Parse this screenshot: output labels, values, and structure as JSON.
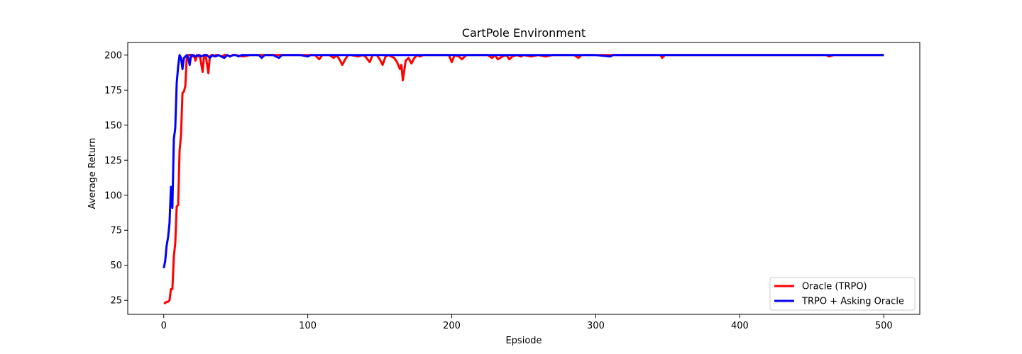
{
  "chart_data": {
    "type": "line",
    "title": "CartPole Environment",
    "xlabel": "Epsiode",
    "ylabel": "Average Return",
    "xlim": [
      -25,
      525
    ],
    "ylim": [
      15,
      209
    ],
    "xticks": [
      0,
      100,
      200,
      300,
      400,
      500
    ],
    "yticks": [
      25,
      50,
      75,
      100,
      125,
      150,
      175,
      200
    ],
    "grid": false,
    "legend": "lower right",
    "series": [
      {
        "name": "Oracle (TRPO)",
        "color": "#ff0000",
        "points": [
          [
            0,
            23
          ],
          [
            1,
            23
          ],
          [
            2,
            24
          ],
          [
            3,
            24
          ],
          [
            4,
            25
          ],
          [
            5,
            33
          ],
          [
            6,
            33
          ],
          [
            7,
            56
          ],
          [
            8,
            66
          ],
          [
            9,
            92
          ],
          [
            10,
            93
          ],
          [
            11,
            132
          ],
          [
            12,
            143
          ],
          [
            13,
            173
          ],
          [
            14,
            174
          ],
          [
            15,
            178
          ],
          [
            16,
            199
          ],
          [
            17,
            200
          ],
          [
            18,
            200
          ],
          [
            19,
            200
          ],
          [
            20,
            199
          ],
          [
            21,
            200
          ],
          [
            22,
            196
          ],
          [
            23,
            200
          ],
          [
            24,
            199
          ],
          [
            25,
            200
          ],
          [
            26,
            194
          ],
          [
            27,
            188
          ],
          [
            28,
            200
          ],
          [
            29,
            200
          ],
          [
            30,
            194
          ],
          [
            31,
            187
          ],
          [
            32,
            199
          ],
          [
            33,
            200
          ],
          [
            34,
            200
          ],
          [
            35,
            199
          ],
          [
            36,
            200
          ],
          [
            38,
            200
          ],
          [
            40,
            199
          ],
          [
            42,
            200
          ],
          [
            44,
            200
          ],
          [
            46,
            199
          ],
          [
            48,
            200
          ],
          [
            50,
            200
          ],
          [
            55,
            199
          ],
          [
            60,
            200
          ],
          [
            70,
            200
          ],
          [
            80,
            200
          ],
          [
            90,
            200
          ],
          [
            100,
            200
          ],
          [
            105,
            200
          ],
          [
            108,
            197
          ],
          [
            110,
            200
          ],
          [
            115,
            200
          ],
          [
            118,
            198
          ],
          [
            120,
            200
          ],
          [
            122,
            197
          ],
          [
            124,
            193
          ],
          [
            126,
            197
          ],
          [
            128,
            200
          ],
          [
            130,
            200
          ],
          [
            135,
            199
          ],
          [
            138,
            200
          ],
          [
            140,
            199
          ],
          [
            143,
            195
          ],
          [
            145,
            200
          ],
          [
            148,
            200
          ],
          [
            150,
            197
          ],
          [
            152,
            193
          ],
          [
            154,
            199
          ],
          [
            156,
            200
          ],
          [
            158,
            199
          ],
          [
            160,
            198
          ],
          [
            162,
            195
          ],
          [
            164,
            190
          ],
          [
            165,
            193
          ],
          [
            166,
            182
          ],
          [
            168,
            196
          ],
          [
            170,
            198
          ],
          [
            172,
            194
          ],
          [
            174,
            198
          ],
          [
            176,
            200
          ],
          [
            178,
            199
          ],
          [
            180,
            200
          ],
          [
            185,
            200
          ],
          [
            190,
            200
          ],
          [
            195,
            200
          ],
          [
            198,
            200
          ],
          [
            200,
            195
          ],
          [
            202,
            200
          ],
          [
            205,
            199
          ],
          [
            207,
            197
          ],
          [
            210,
            200
          ],
          [
            215,
            200
          ],
          [
            220,
            200
          ],
          [
            225,
            200
          ],
          [
            228,
            198
          ],
          [
            230,
            200
          ],
          [
            232,
            197
          ],
          [
            235,
            199
          ],
          [
            238,
            200
          ],
          [
            240,
            197
          ],
          [
            242,
            199
          ],
          [
            245,
            200
          ],
          [
            248,
            199
          ],
          [
            250,
            200
          ],
          [
            255,
            199
          ],
          [
            260,
            200
          ],
          [
            265,
            199
          ],
          [
            270,
            200
          ],
          [
            280,
            200
          ],
          [
            285,
            200
          ],
          [
            288,
            198
          ],
          [
            290,
            200
          ],
          [
            300,
            200
          ],
          [
            310,
            200
          ],
          [
            320,
            200
          ],
          [
            330,
            200
          ],
          [
            340,
            200
          ],
          [
            345,
            200
          ],
          [
            346,
            198
          ],
          [
            348,
            200
          ],
          [
            360,
            200
          ],
          [
            380,
            200
          ],
          [
            400,
            200
          ],
          [
            420,
            200
          ],
          [
            440,
            200
          ],
          [
            460,
            200
          ],
          [
            462,
            199
          ],
          [
            465,
            200
          ],
          [
            480,
            200
          ],
          [
            500,
            200
          ]
        ]
      },
      {
        "name": "TRPO + Asking Oracle",
        "color": "#0000ff",
        "points": [
          [
            0,
            48
          ],
          [
            1,
            53
          ],
          [
            2,
            64
          ],
          [
            3,
            70
          ],
          [
            4,
            80
          ],
          [
            5,
            106
          ],
          [
            6,
            91
          ],
          [
            7,
            140
          ],
          [
            8,
            148
          ],
          [
            9,
            180
          ],
          [
            10,
            192
          ],
          [
            11,
            200
          ],
          [
            12,
            198
          ],
          [
            13,
            190
          ],
          [
            14,
            198
          ],
          [
            15,
            199
          ],
          [
            16,
            200
          ],
          [
            17,
            198
          ],
          [
            18,
            193
          ],
          [
            19,
            200
          ],
          [
            20,
            200
          ],
          [
            22,
            199
          ],
          [
            24,
            200
          ],
          [
            26,
            199
          ],
          [
            28,
            200
          ],
          [
            30,
            200
          ],
          [
            32,
            198
          ],
          [
            34,
            200
          ],
          [
            36,
            199
          ],
          [
            38,
            200
          ],
          [
            40,
            199
          ],
          [
            42,
            198
          ],
          [
            44,
            200
          ],
          [
            46,
            199
          ],
          [
            48,
            200
          ],
          [
            50,
            200
          ],
          [
            52,
            199
          ],
          [
            54,
            200
          ],
          [
            56,
            200
          ],
          [
            58,
            200
          ],
          [
            60,
            200
          ],
          [
            62,
            200
          ],
          [
            64,
            200
          ],
          [
            66,
            200
          ],
          [
            68,
            198
          ],
          [
            70,
            200
          ],
          [
            72,
            200
          ],
          [
            74,
            200
          ],
          [
            76,
            200
          ],
          [
            78,
            199
          ],
          [
            80,
            198
          ],
          [
            82,
            200
          ],
          [
            85,
            200
          ],
          [
            90,
            200
          ],
          [
            95,
            200
          ],
          [
            100,
            199
          ],
          [
            102,
            200
          ],
          [
            105,
            200
          ],
          [
            110,
            200
          ],
          [
            115,
            200
          ],
          [
            120,
            200
          ],
          [
            125,
            200
          ],
          [
            130,
            200
          ],
          [
            140,
            200
          ],
          [
            150,
            200
          ],
          [
            160,
            200
          ],
          [
            163,
            200
          ],
          [
            170,
            200
          ],
          [
            180,
            200
          ],
          [
            190,
            200
          ],
          [
            200,
            200
          ],
          [
            210,
            200
          ],
          [
            220,
            200
          ],
          [
            230,
            200
          ],
          [
            240,
            200
          ],
          [
            250,
            200
          ],
          [
            260,
            200
          ],
          [
            270,
            200
          ],
          [
            280,
            200
          ],
          [
            290,
            200
          ],
          [
            300,
            200
          ],
          [
            310,
            199
          ],
          [
            312,
            200
          ],
          [
            320,
            200
          ],
          [
            340,
            200
          ],
          [
            360,
            200
          ],
          [
            380,
            200
          ],
          [
            400,
            200
          ],
          [
            420,
            200
          ],
          [
            440,
            200
          ],
          [
            460,
            200
          ],
          [
            480,
            200
          ],
          [
            500,
            200
          ]
        ]
      }
    ]
  }
}
